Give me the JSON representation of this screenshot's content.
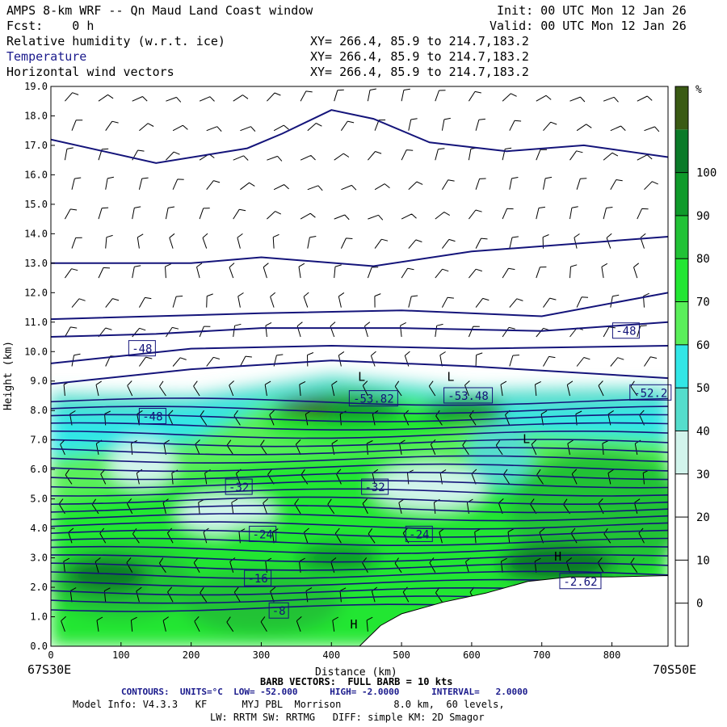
{
  "header": {
    "title": "AMPS 8-km WRF -- Qn Maud Land Coast window",
    "fcst": "Fcst:    0 h",
    "init": "Init: 00 UTC Mon 12 Jan 26",
    "valid": "Valid: 00 UTC Mon 12 Jan 26",
    "fields": [
      {
        "name": "Relative humidity (w.r.t. ice)",
        "xy": "XY= 266.4, 85.9 to 214.7,183.2"
      },
      {
        "name": "Temperature",
        "xy": "XY= 266.4, 85.9 to 214.7,183.2"
      },
      {
        "name": "Horizontal wind vectors",
        "xy": "XY= 266.4, 85.9 to 214.7,183.2"
      }
    ]
  },
  "footer": {
    "left_coord": "67S30E",
    "right_coord": "70S50E",
    "barb_line": "BARB VECTORS:  FULL BARB = 10 kts",
    "contours_line": "CONTOURS:  UNITS=°C  LOW= -52.000      HIGH= -2.0000      INTERVAL=   2.0000",
    "model_line1": "Model Info: V4.3.3   KF      MYJ PBL  Morrison         8.0 km,  60 levels,",
    "model_line2": "LW: RRTM SW: RRTMG   DIFF: simple KM: 2D Smagor"
  },
  "colorbar": {
    "unit": "%",
    "labels": [
      "0",
      "10",
      "20",
      "30",
      "40",
      "50",
      "60",
      "70",
      "80",
      "90",
      "100"
    ],
    "colors": [
      "#ffffff",
      "#ffffff",
      "#ffffff",
      "#ffffff",
      "#d2f4ec",
      "#55ddcc",
      "#32e6e6",
      "#5aef5a",
      "#23e633",
      "#22c236",
      "#0f9a2a",
      "#0a7a28",
      "#3a5a14"
    ]
  },
  "chart_data": {
    "type": "contour",
    "xlabel": "Distance (km)",
    "ylabel": "Height (km)",
    "xlim": [
      0,
      880
    ],
    "ylim": [
      0,
      19
    ],
    "xticks": [
      0,
      100,
      200,
      300,
      400,
      500,
      600,
      700,
      800
    ],
    "yticks": [
      "0.0",
      "1.0",
      "2.0",
      "3.0",
      "4.0",
      "5.0",
      "6.0",
      "7.0",
      "8.0",
      "9.0",
      "10.0",
      "11.0",
      "12.0",
      "13.0",
      "14.0",
      "15.0",
      "16.0",
      "17.0",
      "18.0",
      "19.0"
    ],
    "temperature_contour_labels": [
      {
        "text": "-48",
        "x": 130,
        "y": 10.1
      },
      {
        "text": "-48",
        "x": 820,
        "y": 10.7
      },
      {
        "text": "-48",
        "x": 145,
        "y": 7.8
      },
      {
        "text": "-53.82",
        "x": 460,
        "y": 8.4
      },
      {
        "text": "-53.48",
        "x": 595,
        "y": 8.5
      },
      {
        "text": "-52.2",
        "x": 855,
        "y": 8.6
      },
      {
        "text": "-32",
        "x": 268,
        "y": 5.4
      },
      {
        "text": "-32",
        "x": 462,
        "y": 5.4
      },
      {
        "text": "-24",
        "x": 302,
        "y": 3.8
      },
      {
        "text": "-24",
        "x": 525,
        "y": 3.8
      },
      {
        "text": "-16",
        "x": 295,
        "y": 2.3
      },
      {
        "text": "-8",
        "x": 325,
        "y": 1.2
      },
      {
        "text": "-2.62",
        "x": 755,
        "y": 2.2
      }
    ],
    "extrema_labels": [
      {
        "text": "L",
        "x": 443,
        "y": 9.0
      },
      {
        "text": "L",
        "x": 570,
        "y": 9.0
      },
      {
        "text": "L",
        "x": 678,
        "y": 6.9
      },
      {
        "text": "H",
        "x": 723,
        "y": 2.9
      },
      {
        "text": "H",
        "x": 432,
        "y": 0.6
      }
    ],
    "terrain": [
      [
        440,
        0
      ],
      [
        470,
        0.7
      ],
      [
        500,
        1.1
      ],
      [
        560,
        1.5
      ],
      [
        620,
        1.8
      ],
      [
        680,
        2.2
      ],
      [
        740,
        2.35
      ],
      [
        800,
        2.35
      ],
      [
        880,
        2.4
      ]
    ]
  }
}
